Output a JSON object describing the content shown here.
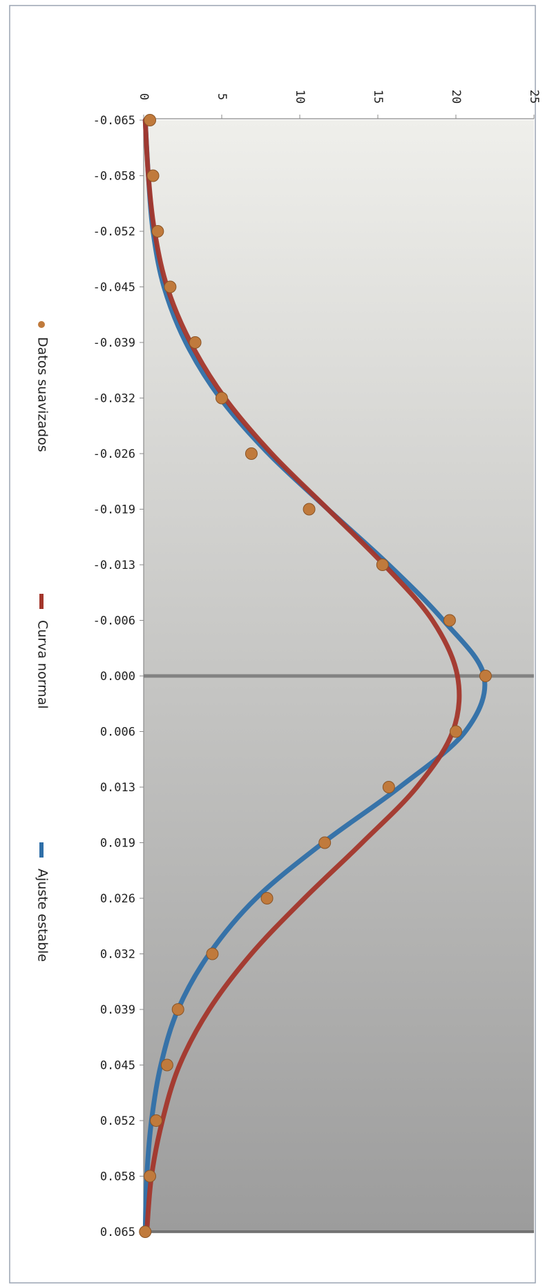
{
  "chart_data": {
    "type": "scatter",
    "orientation": "rotated-90-clockwise",
    "x_ticks": [
      "-0.065",
      "-0.058",
      "-0.052",
      "-0.045",
      "-0.039",
      "-0.032",
      "-0.026",
      "-0.019",
      "-0.013",
      "-0.006",
      "0.000",
      "0.006",
      "0.013",
      "0.019",
      "0.026",
      "0.032",
      "0.039",
      "0.045",
      "0.052",
      "0.058",
      "0.065"
    ],
    "y_ticks": [
      "0",
      "5",
      "10",
      "15",
      "20",
      "25"
    ],
    "ylim": [
      0,
      25
    ],
    "grid": false,
    "legend_position": "bottom",
    "colors": {
      "points": "#c07a3c",
      "normal": "#a3362b",
      "stable": "#2f6fa8",
      "axis": "#8a8a8a",
      "plot_top": "#efefeb",
      "plot_bottom": "#9c9c9c"
    },
    "series": [
      {
        "name": "Datos suavizados",
        "kind": "points",
        "values": [
          0.4,
          0.6,
          0.9,
          1.7,
          3.3,
          5.0,
          6.9,
          10.6,
          15.3,
          19.6,
          21.9,
          20.0,
          15.7,
          11.6,
          7.9,
          4.4,
          2.2,
          1.5,
          0.8,
          0.4,
          0.1
        ]
      },
      {
        "name": "Curva normal",
        "kind": "line",
        "values": [
          0.1,
          0.3,
          0.7,
          1.5,
          3.0,
          5.2,
          8.2,
          11.8,
          15.4,
          18.5,
          20.1,
          19.8,
          17.5,
          14.0,
          10.3,
          6.9,
          4.2,
          2.3,
          1.2,
          0.5,
          0.2
        ]
      },
      {
        "name": "Ajuste estable",
        "kind": "line",
        "values": [
          0.1,
          0.3,
          0.6,
          1.3,
          2.7,
          4.9,
          8.0,
          11.8,
          15.7,
          19.2,
          21.8,
          20.6,
          16.4,
          11.5,
          7.2,
          4.2,
          2.2,
          1.1,
          0.5,
          0.2,
          0.1
        ]
      }
    ]
  }
}
